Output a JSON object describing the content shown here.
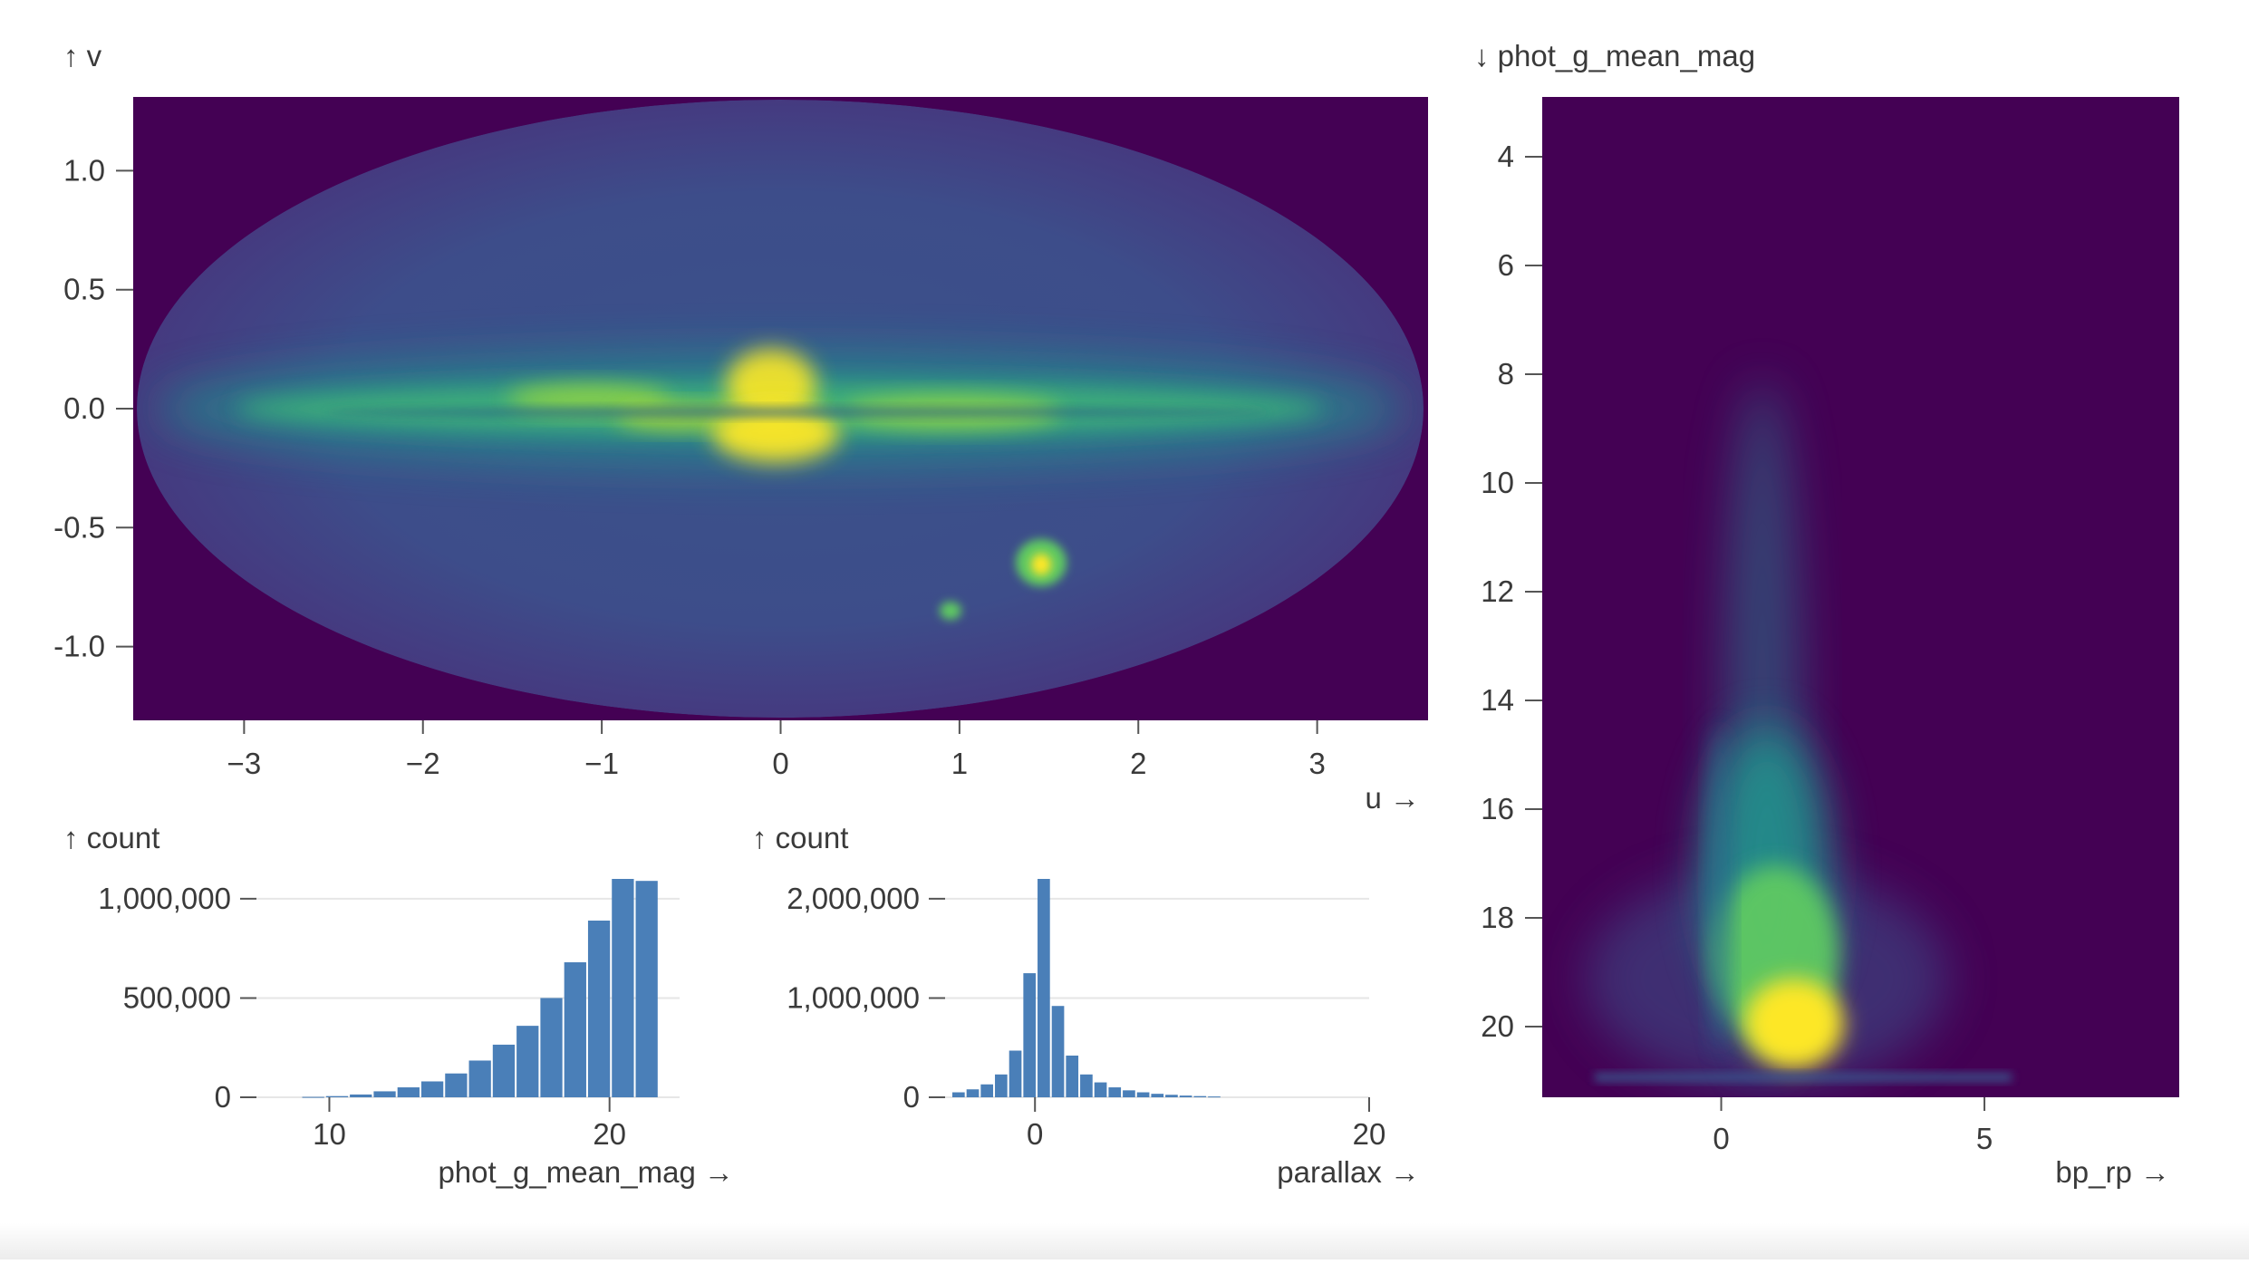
{
  "chart_data": [
    {
      "type": "heatmap",
      "description_of_content": "sky density map, elliptical projection",
      "xlabel": "u →",
      "ylabel": "↑ v",
      "xlim": [
        -3.62,
        3.62
      ],
      "ylim": [
        -1.31,
        1.31
      ],
      "x_ticks": [
        -3,
        -2,
        -1,
        0,
        1,
        2,
        3
      ],
      "x_tick_labels": [
        "−3",
        "−2",
        "−1",
        "0",
        "1",
        "2",
        "3"
      ],
      "y_ticks": [
        1.0,
        0.5,
        0.0,
        -0.5,
        -1.0
      ],
      "y_tick_labels": [
        "1.0",
        "0.5",
        "0.0",
        "-0.5",
        "-1.0"
      ],
      "colormap": [
        "#440154",
        "#3b528b",
        "#21918c",
        "#5ec962",
        "#fde725"
      ],
      "background": "#440154"
    },
    {
      "type": "heatmap",
      "xlabel": "bp_rp →",
      "ylabel": "↓ phot_g_mean_mag",
      "xlim": [
        -3.4,
        8.7
      ],
      "ylim": [
        21.3,
        2.9
      ],
      "y_reversed": true,
      "x_ticks": [
        0,
        5
      ],
      "x_tick_labels": [
        "0",
        "5"
      ],
      "y_ticks": [
        4,
        6,
        8,
        10,
        12,
        14,
        16,
        18,
        20
      ],
      "y_tick_labels": [
        "4",
        "6",
        "8",
        "10",
        "12",
        "14",
        "16",
        "18",
        "20"
      ],
      "colormap": [
        "#440154",
        "#3b528b",
        "#21918c",
        "#5ec962",
        "#fde725"
      ],
      "background": "#440154"
    },
    {
      "type": "bar",
      "xlabel": "phot_g_mean_mag →",
      "ylabel": "↑ count",
      "xlim": [
        3,
        22.5
      ],
      "ylim": [
        0,
        1100000
      ],
      "x_ticks": [
        10,
        20
      ],
      "x_tick_labels": [
        "10",
        "20"
      ],
      "y_ticks": [
        0,
        500000,
        1000000
      ],
      "y_tick_labels": [
        "0",
        "500,000",
        "1,000,000"
      ],
      "grid": true,
      "bin_width": 0.85,
      "bins": [
        {
          "x0": 9.0,
          "count": 2000
        },
        {
          "x0": 9.85,
          "count": 6000
        },
        {
          "x0": 10.7,
          "count": 14000
        },
        {
          "x0": 11.55,
          "count": 30000
        },
        {
          "x0": 12.4,
          "count": 50000
        },
        {
          "x0": 13.25,
          "count": 80000
        },
        {
          "x0": 14.1,
          "count": 120000
        },
        {
          "x0": 14.95,
          "count": 185000
        },
        {
          "x0": 15.8,
          "count": 265000
        },
        {
          "x0": 16.65,
          "count": 360000
        },
        {
          "x0": 17.5,
          "count": 500000
        },
        {
          "x0": 18.35,
          "count": 680000
        },
        {
          "x0": 19.2,
          "count": 890000
        },
        {
          "x0": 20.05,
          "count": 1100000
        },
        {
          "x0": 20.9,
          "count": 1090000
        }
      ],
      "bar_color": "#4a7fb8"
    },
    {
      "type": "bar",
      "xlabel": "parallax →",
      "ylabel": "↑ count",
      "xlim": [
        -5,
        20
      ],
      "ylim": [
        0,
        2200000
      ],
      "x_ticks": [
        0,
        20
      ],
      "x_tick_labels": [
        "0",
        "20"
      ],
      "y_ticks": [
        0,
        1000000,
        2000000
      ],
      "y_tick_labels": [
        "0",
        "1,000,000",
        "2,000,000"
      ],
      "grid": true,
      "bin_width": 0.85,
      "bins": [
        {
          "x0": -5.0,
          "count": 50000
        },
        {
          "x0": -4.15,
          "count": 80000
        },
        {
          "x0": -3.3,
          "count": 130000
        },
        {
          "x0": -2.45,
          "count": 230000
        },
        {
          "x0": -1.6,
          "count": 470000
        },
        {
          "x0": -0.75,
          "count": 1250000
        },
        {
          "x0": 0.1,
          "count": 2200000
        },
        {
          "x0": 0.95,
          "count": 920000
        },
        {
          "x0": 1.8,
          "count": 420000
        },
        {
          "x0": 2.65,
          "count": 230000
        },
        {
          "x0": 3.5,
          "count": 150000
        },
        {
          "x0": 4.35,
          "count": 100000
        },
        {
          "x0": 5.2,
          "count": 70000
        },
        {
          "x0": 6.05,
          "count": 50000
        },
        {
          "x0": 6.9,
          "count": 35000
        },
        {
          "x0": 7.75,
          "count": 25000
        },
        {
          "x0": 8.6,
          "count": 17000
        },
        {
          "x0": 9.45,
          "count": 12000
        },
        {
          "x0": 10.3,
          "count": 8000
        }
      ],
      "bar_color": "#4a7fb8"
    }
  ]
}
